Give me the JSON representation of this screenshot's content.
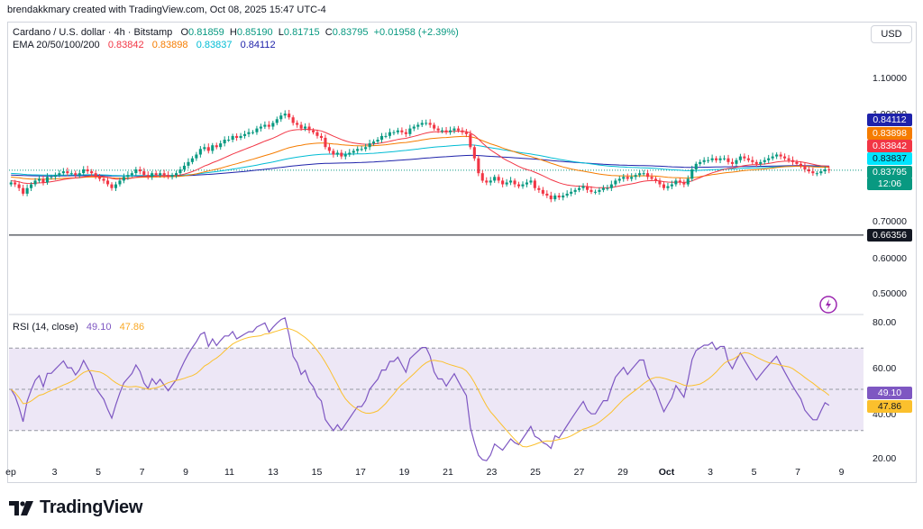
{
  "header": {
    "attribution": "brendakkmary created with TradingView.com, Oct 08, 2025 15:47 UTC-4"
  },
  "legend": {
    "symbol": "Cardano / U.S. dollar · 4h · Bitstamp",
    "o_label": "O",
    "o": "0.81859",
    "h_label": "H",
    "h": "0.85190",
    "l_label": "L",
    "l": "0.81715",
    "c_label": "C",
    "c": "0.83795",
    "change": "+0.01958 (+2.39%)",
    "ema_label": "EMA 20/50/100/200",
    "ema": [
      "0.83842",
      "0.83898",
      "0.83837",
      "0.84112"
    ]
  },
  "rsi_legend": {
    "label": "RSI (14, close)",
    "value": "49.10",
    "ma": "47.86"
  },
  "currency_button": "USD",
  "price_axis_ticks": [
    "1.10000",
    "1.00000",
    "0.70000",
    "0.60000",
    "0.50000"
  ],
  "price_tags": [
    {
      "text": "0.84112",
      "color": "#1e22aa"
    },
    {
      "text": "0.83898",
      "color": "#f57c00"
    },
    {
      "text": "0.83842",
      "color": "#f23645"
    },
    {
      "text": "0.83837",
      "color": "#00e5ff"
    },
    {
      "text": "0.83795",
      "color": "#089981"
    },
    {
      "text": "12:06",
      "color": "#089981"
    },
    {
      "text": "0.66356",
      "color": "#131722"
    }
  ],
  "rsi_axis_ticks": [
    "80.00",
    "60.00",
    "40.00",
    "20.00"
  ],
  "rsi_tags": [
    {
      "text": "49.10",
      "color": "#7e57c2"
    },
    {
      "text": "47.86",
      "color": "#fbc02d"
    }
  ],
  "x_ticks": [
    "ep",
    "3",
    "5",
    "7",
    "9",
    "11",
    "13",
    "15",
    "17",
    "19",
    "21",
    "23",
    "25",
    "27",
    "29",
    "Oct",
    "3",
    "5",
    "7",
    "9"
  ],
  "brand": {
    "logo_text": "TradingView"
  },
  "colors": {
    "up": "#089981",
    "down": "#f23645",
    "ema20": "#f23645",
    "ema50": "#f57c00",
    "ema100": "#00bcd4",
    "ema200": "#1e22aa",
    "rsi": "#7e57c2",
    "rsi_ma": "#fbc02d",
    "rsi_band": "#ede7f6",
    "hline": "#131722"
  },
  "chart_data": {
    "type": "candlestick",
    "title": "Cardano / U.S. dollar · 4h · Bitstamp",
    "price_range": [
      0.46,
      1.15
    ],
    "horizontal_line": 0.66356,
    "last_price": 0.83795,
    "close_series": [
      0.805,
      0.8,
      0.79,
      0.775,
      0.79,
      0.8,
      0.81,
      0.815,
      0.805,
      0.82,
      0.82,
      0.825,
      0.83,
      0.835,
      0.83,
      0.83,
      0.825,
      0.83,
      0.84,
      0.835,
      0.83,
      0.82,
      0.815,
      0.81,
      0.8,
      0.79,
      0.8,
      0.81,
      0.82,
      0.825,
      0.83,
      0.84,
      0.835,
      0.825,
      0.82,
      0.83,
      0.825,
      0.83,
      0.825,
      0.82,
      0.825,
      0.83,
      0.84,
      0.85,
      0.86,
      0.87,
      0.88,
      0.895,
      0.9,
      0.89,
      0.905,
      0.9,
      0.91,
      0.92,
      0.92,
      0.93,
      0.925,
      0.93,
      0.935,
      0.94,
      0.94,
      0.95,
      0.955,
      0.96,
      0.955,
      0.965,
      0.975,
      0.985,
      0.99,
      0.98,
      0.965,
      0.96,
      0.95,
      0.955,
      0.945,
      0.94,
      0.93,
      0.925,
      0.9,
      0.89,
      0.88,
      0.885,
      0.875,
      0.88,
      0.885,
      0.89,
      0.895,
      0.895,
      0.9,
      0.91,
      0.915,
      0.92,
      0.93,
      0.93,
      0.94,
      0.94,
      0.945,
      0.94,
      0.935,
      0.95,
      0.955,
      0.96,
      0.965,
      0.965,
      0.96,
      0.95,
      0.945,
      0.945,
      0.94,
      0.945,
      0.95,
      0.945,
      0.94,
      0.935,
      0.9,
      0.87,
      0.83,
      0.81,
      0.805,
      0.81,
      0.82,
      0.81,
      0.8,
      0.805,
      0.81,
      0.8,
      0.795,
      0.8,
      0.805,
      0.81,
      0.79,
      0.785,
      0.775,
      0.77,
      0.76,
      0.77,
      0.765,
      0.77,
      0.775,
      0.78,
      0.785,
      0.79,
      0.795,
      0.785,
      0.78,
      0.78,
      0.785,
      0.79,
      0.79,
      0.8,
      0.81,
      0.815,
      0.82,
      0.815,
      0.82,
      0.825,
      0.83,
      0.83,
      0.82,
      0.815,
      0.81,
      0.8,
      0.79,
      0.795,
      0.8,
      0.81,
      0.805,
      0.8,
      0.815,
      0.84,
      0.855,
      0.86,
      0.865,
      0.865,
      0.87,
      0.865,
      0.87,
      0.87,
      0.86,
      0.855,
      0.865,
      0.875,
      0.87,
      0.865,
      0.86,
      0.855,
      0.86,
      0.865,
      0.87,
      0.875,
      0.88,
      0.875,
      0.87,
      0.865,
      0.86,
      0.855,
      0.85,
      0.84,
      0.835,
      0.83,
      0.83,
      0.835,
      0.84,
      0.83795
    ],
    "ema": {
      "20": "0.83842",
      "50": "0.83898",
      "100": "0.83837",
      "200": "0.84112"
    },
    "rsi": {
      "range": [
        15,
        85
      ],
      "band": [
        30,
        70
      ],
      "mid": 50,
      "value": 49.1,
      "ma": 47.86
    },
    "x_tick_labels": [
      "ep",
      "3",
      "5",
      "7",
      "9",
      "11",
      "13",
      "15",
      "17",
      "19",
      "21",
      "23",
      "25",
      "27",
      "29",
      "Oct",
      "3",
      "5",
      "7",
      "9"
    ]
  }
}
